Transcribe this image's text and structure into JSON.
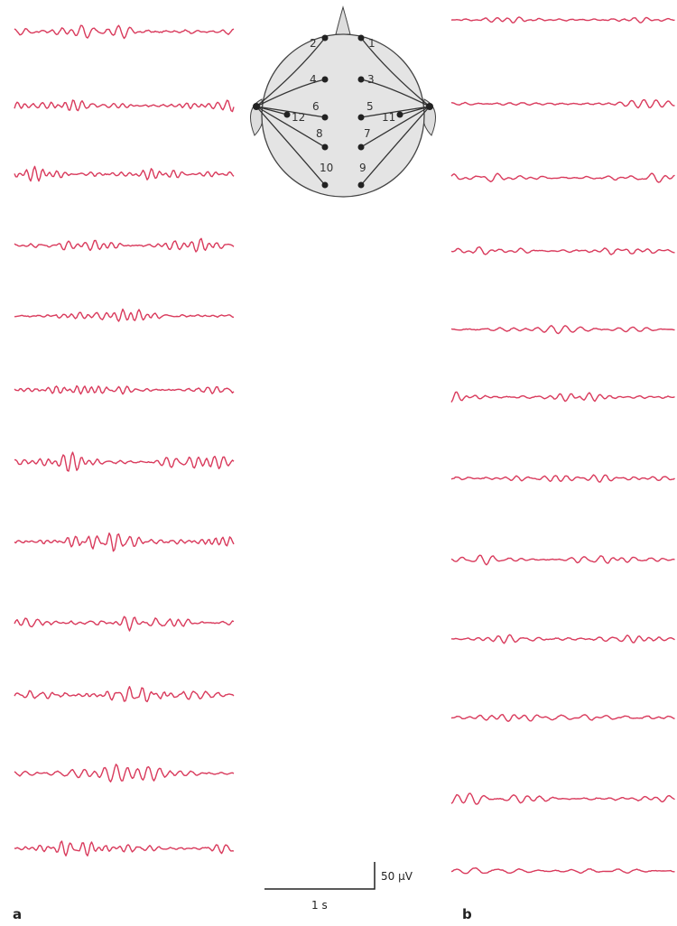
{
  "head": {
    "electrodes": [
      "1",
      "2",
      "3",
      "4",
      "5",
      "6",
      "7",
      "8",
      "9",
      "10",
      "11",
      "12"
    ]
  },
  "scale_bar": {
    "amplitude": "50 µV",
    "time": "1 s"
  },
  "panels": [
    {
      "label": "a"
    },
    {
      "label": "b"
    }
  ]
}
